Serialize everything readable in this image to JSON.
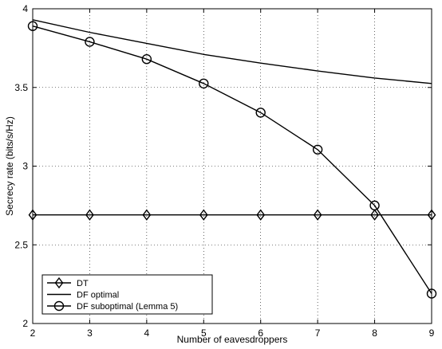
{
  "chart_data": {
    "type": "line",
    "title": "",
    "xlabel": "Number of eavesdroppers",
    "ylabel": "Secrecy rate (bits/s/Hz)",
    "x": [
      2,
      3,
      4,
      5,
      6,
      7,
      8,
      9
    ],
    "xlim": [
      2,
      9
    ],
    "ylim": [
      2,
      4
    ],
    "xticks": [
      "2",
      "3",
      "4",
      "5",
      "6",
      "7",
      "8",
      "9"
    ],
    "yticks": [
      "2",
      "2.5",
      "3",
      "3.5",
      "4"
    ],
    "grid": true,
    "legend_position": "bottom-left",
    "series": [
      {
        "name": "DT",
        "marker": "diamond",
        "color": "#000000",
        "values": [
          2.69,
          2.69,
          2.69,
          2.69,
          2.69,
          2.69,
          2.69,
          2.69
        ]
      },
      {
        "name": "DF optimal",
        "marker": "none",
        "color": "#000000",
        "values": [
          3.93,
          3.85,
          3.78,
          3.71,
          3.655,
          3.605,
          3.56,
          3.525
        ]
      },
      {
        "name": "DF suboptimal (Lemma 5)",
        "marker": "circle",
        "color": "#000000",
        "values": [
          3.89,
          3.79,
          3.68,
          3.525,
          3.34,
          3.105,
          2.75,
          2.19
        ]
      }
    ]
  }
}
